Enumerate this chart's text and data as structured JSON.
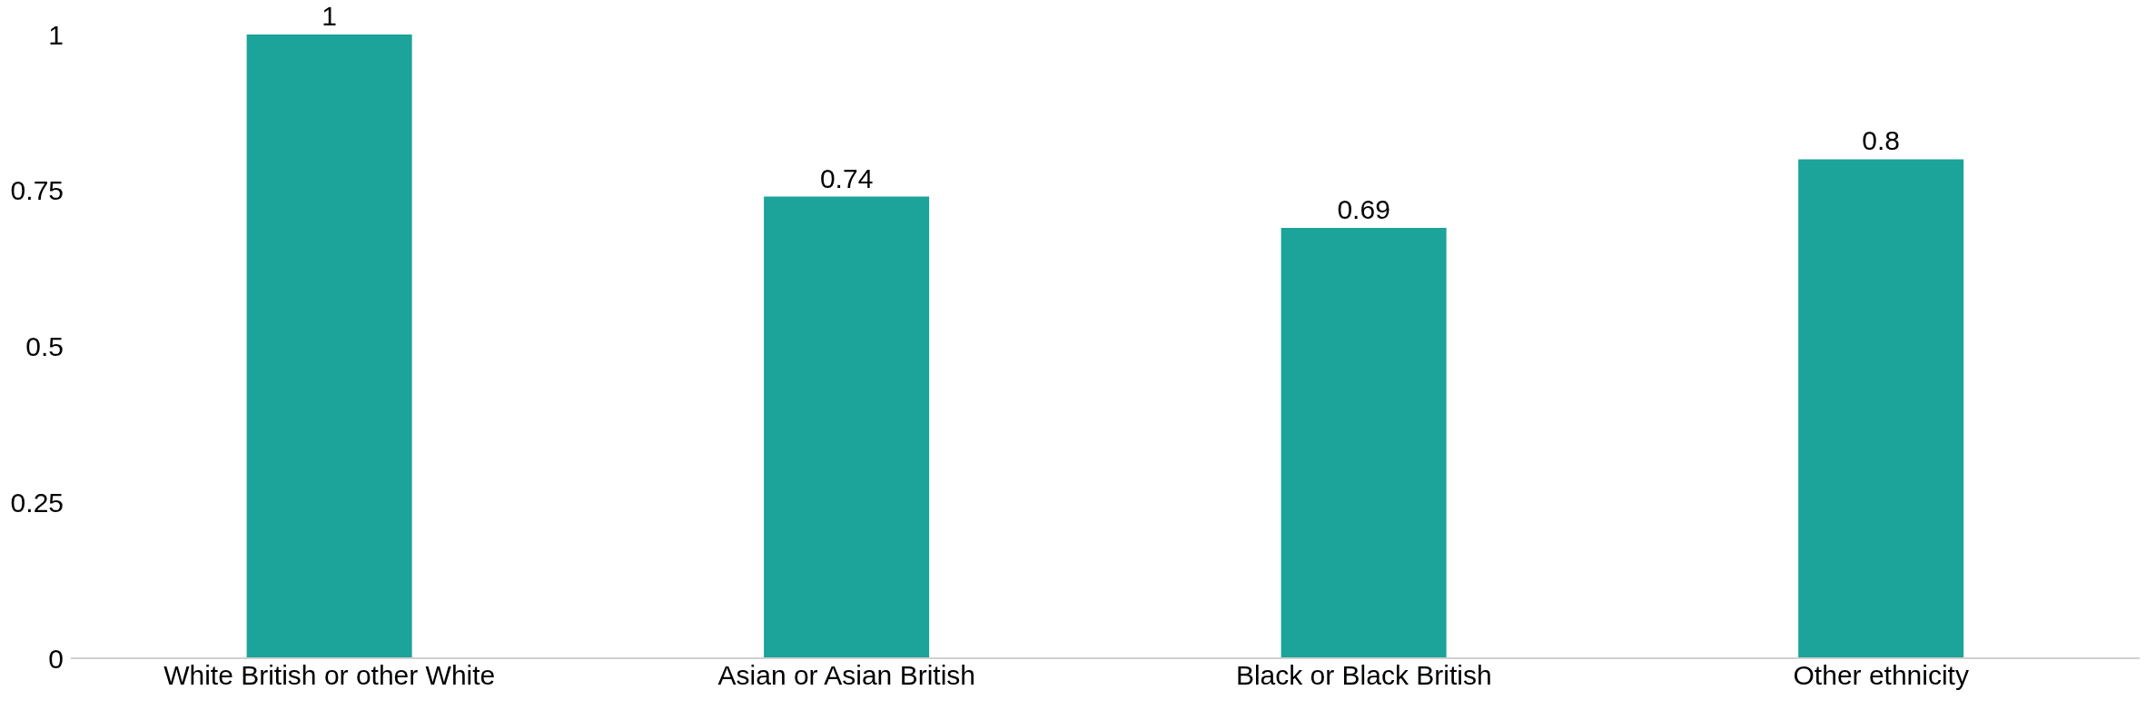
{
  "chart_data": {
    "type": "bar",
    "categories": [
      "White British or other White",
      "Asian or Asian British",
      "Black or Black British",
      "Other ethnicity"
    ],
    "values": [
      1,
      0.74,
      0.69,
      0.8
    ],
    "color": "#1ca39a",
    "ylim": [
      0,
      1
    ],
    "yticks": [
      0,
      0.25,
      0.5,
      0.75,
      1
    ],
    "grid": false,
    "data_labels": true
  }
}
